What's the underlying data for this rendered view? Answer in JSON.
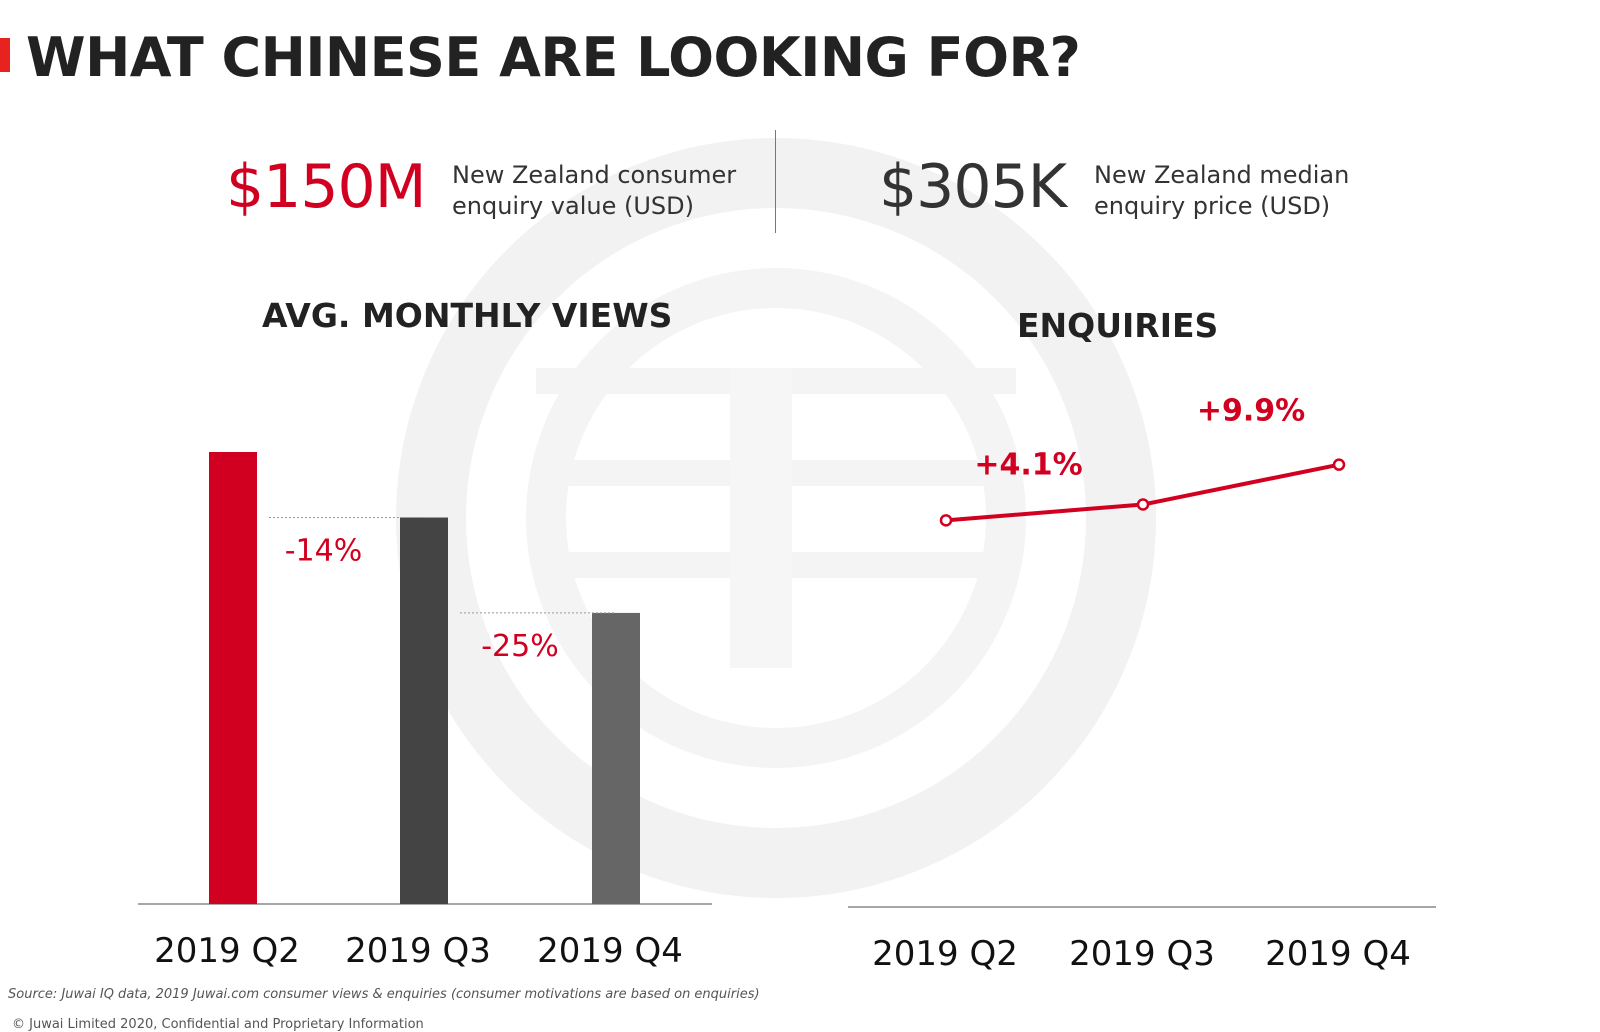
{
  "title": "WHAT CHINESE ARE LOOKING FOR?",
  "kpis": [
    {
      "value": "$150M",
      "description": "New Zealand consumer enquiry value (USD)",
      "line1": "New Zealand consumer",
      "line2": "enquiry value (USD)",
      "color": "#d10020"
    },
    {
      "value": "$305K",
      "description": "New Zealand median enquiry price (USD)",
      "line1": "New Zealand median",
      "line2": "enquiry price (USD)",
      "color": "#333333"
    }
  ],
  "colors": {
    "accent": "#e8231f",
    "red": "#d10020",
    "dark": "#444444",
    "mid": "#666666"
  },
  "chart_data": [
    {
      "type": "bar",
      "title": "AVG. MONTHLY VIEWS",
      "categories": [
        "2019 Q2",
        "2019 Q3",
        "2019 Q4"
      ],
      "values": [
        100,
        85.5,
        64.4
      ],
      "bar_colors": [
        "#d10020",
        "#444444",
        "#666666"
      ],
      "annotations": [
        "-14%",
        "-25%"
      ],
      "ylim": [
        0,
        100
      ]
    },
    {
      "type": "line",
      "title": "ENQUIRIES",
      "categories": [
        "2019 Q2",
        "2019 Q3",
        "2019 Q4"
      ],
      "values": [
        100,
        104.1,
        114.4
      ],
      "annotations": [
        "+4.1%",
        "+9.9%"
      ],
      "line_color": "#d10020",
      "ylim": [
        0,
        120
      ]
    }
  ],
  "footer": {
    "source": "Source: Juwai IQ data, 2019 Juwai.com consumer views & enquiries (consumer motivations are based on enquiries)",
    "copyright": "© Juwai Limited 2020, Confidential and Proprietary Information"
  }
}
